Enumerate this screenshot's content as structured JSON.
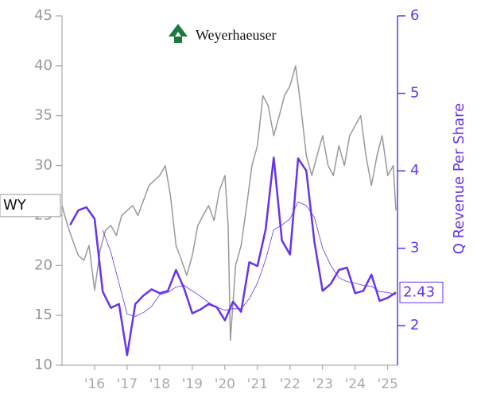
{
  "chart_data": {
    "type": "line",
    "logo_text": "Weyerhaeuser",
    "y2_label": "Q Revenue Per Share",
    "end_label": "2.43",
    "xlim": [
      2015,
      2025.3
    ],
    "xticks": [
      {
        "value": 2016,
        "label": "'16"
      },
      {
        "value": 2017,
        "label": "'17"
      },
      {
        "value": 2018,
        "label": "'18"
      },
      {
        "value": 2019,
        "label": "'19"
      },
      {
        "value": 2020,
        "label": "'20"
      },
      {
        "value": 2021,
        "label": "'21"
      },
      {
        "value": 2022,
        "label": "'22"
      },
      {
        "value": 2023,
        "label": "'23"
      },
      {
        "value": 2024,
        "label": "'24"
      },
      {
        "value": 2025,
        "label": "'25"
      }
    ],
    "ylim": [
      10,
      45
    ],
    "yticks": [
      10,
      15,
      20,
      25,
      30,
      35,
      40,
      45
    ],
    "y2lim": [
      1.49,
      6
    ],
    "y2ticks": [
      2,
      3,
      4,
      5,
      6
    ],
    "series": [
      {
        "name": "WY",
        "color": "#999999",
        "axis": "y",
        "width": 1.5,
        "x": [
          2015.0,
          2015.17,
          2015.33,
          2015.5,
          2015.67,
          2015.83,
          2016.0,
          2016.17,
          2016.33,
          2016.5,
          2016.67,
          2016.83,
          2017.0,
          2017.17,
          2017.33,
          2017.5,
          2017.67,
          2017.83,
          2018.0,
          2018.17,
          2018.33,
          2018.5,
          2018.67,
          2018.83,
          2019.0,
          2019.17,
          2019.33,
          2019.5,
          2019.67,
          2019.83,
          2020.0,
          2020.1,
          2020.17,
          2020.33,
          2020.5,
          2020.67,
          2020.83,
          2021.0,
          2021.17,
          2021.33,
          2021.5,
          2021.67,
          2021.83,
          2022.0,
          2022.17,
          2022.33,
          2022.5,
          2022.67,
          2022.83,
          2023.0,
          2023.17,
          2023.33,
          2023.5,
          2023.67,
          2023.83,
          2024.0,
          2024.17,
          2024.33,
          2024.5,
          2024.67,
          2024.83,
          2025.0,
          2025.17,
          2025.25
        ],
        "values": [
          26,
          24,
          22.5,
          21,
          20.5,
          22,
          17.5,
          21.5,
          23.5,
          24,
          23,
          25,
          25.5,
          26,
          25,
          26.5,
          28,
          28.5,
          29,
          30,
          27,
          22,
          20.5,
          19,
          21,
          24,
          25,
          26,
          24.5,
          27.5,
          29,
          24,
          12.5,
          20,
          22,
          26,
          30,
          32,
          37,
          36,
          33,
          35,
          37,
          38,
          40,
          36,
          31,
          29,
          31,
          33,
          30,
          29,
          32,
          30,
          33,
          34,
          35,
          31,
          28,
          31,
          33,
          29,
          30,
          25.5
        ]
      },
      {
        "color": "#6633ee",
        "axis": "y2",
        "width": 2.5,
        "x": [
          2015.25,
          2015.5,
          2015.75,
          2016.0,
          2016.25,
          2016.5,
          2016.75,
          2017.0,
          2017.25,
          2017.5,
          2017.75,
          2018.0,
          2018.25,
          2018.5,
          2018.75,
          2019.0,
          2019.25,
          2019.5,
          2019.75,
          2020.0,
          2020.25,
          2020.5,
          2020.75,
          2021.0,
          2021.25,
          2021.5,
          2021.75,
          2022.0,
          2022.25,
          2022.5,
          2022.75,
          2023.0,
          2023.25,
          2023.5,
          2023.75,
          2024.0,
          2024.25,
          2024.5,
          2024.75,
          2025.0,
          2025.25
        ],
        "values": [
          3.3,
          3.49,
          3.53,
          3.38,
          2.44,
          2.23,
          2.28,
          1.62,
          2.28,
          2.39,
          2.47,
          2.42,
          2.45,
          2.72,
          2.48,
          2.16,
          2.21,
          2.28,
          2.24,
          2.07,
          2.31,
          2.18,
          2.82,
          2.77,
          3.24,
          4.17,
          3.1,
          2.92,
          4.16,
          4.0,
          3.08,
          2.45,
          2.54,
          2.72,
          2.75,
          2.42,
          2.45,
          2.66,
          2.32,
          2.36,
          2.43
        ]
      },
      {
        "color": "#6633ee",
        "axis": "y2",
        "width": 0.8,
        "x": [
          2015.25,
          2015.5,
          2015.75,
          2016.0,
          2016.25,
          2016.5,
          2016.75,
          2017.0,
          2017.25,
          2017.5,
          2017.75,
          2018.0,
          2018.25,
          2018.5,
          2018.75,
          2019.0,
          2019.25,
          2019.5,
          2019.75,
          2020.0,
          2020.25,
          2020.5,
          2020.75,
          2021.0,
          2021.25,
          2021.5,
          2021.75,
          2022.0,
          2022.25,
          2022.5,
          2022.75,
          2023.0,
          2023.25,
          2023.5,
          2023.75,
          2024.0,
          2024.25,
          2024.5,
          2024.75,
          2025.0,
          2025.25
        ],
        "values": [
          null,
          null,
          null,
          null,
          3.23,
          2.95,
          2.55,
          2.15,
          2.12,
          2.17,
          2.25,
          2.4,
          2.43,
          2.5,
          2.52,
          2.45,
          2.38,
          2.3,
          2.24,
          2.2,
          2.22,
          2.22,
          2.35,
          2.55,
          2.85,
          3.24,
          3.3,
          3.38,
          3.6,
          3.55,
          3.4,
          3.0,
          2.78,
          2.62,
          2.57,
          2.55,
          2.52,
          2.51,
          2.44,
          2.43,
          2.4
        ]
      }
    ]
  }
}
